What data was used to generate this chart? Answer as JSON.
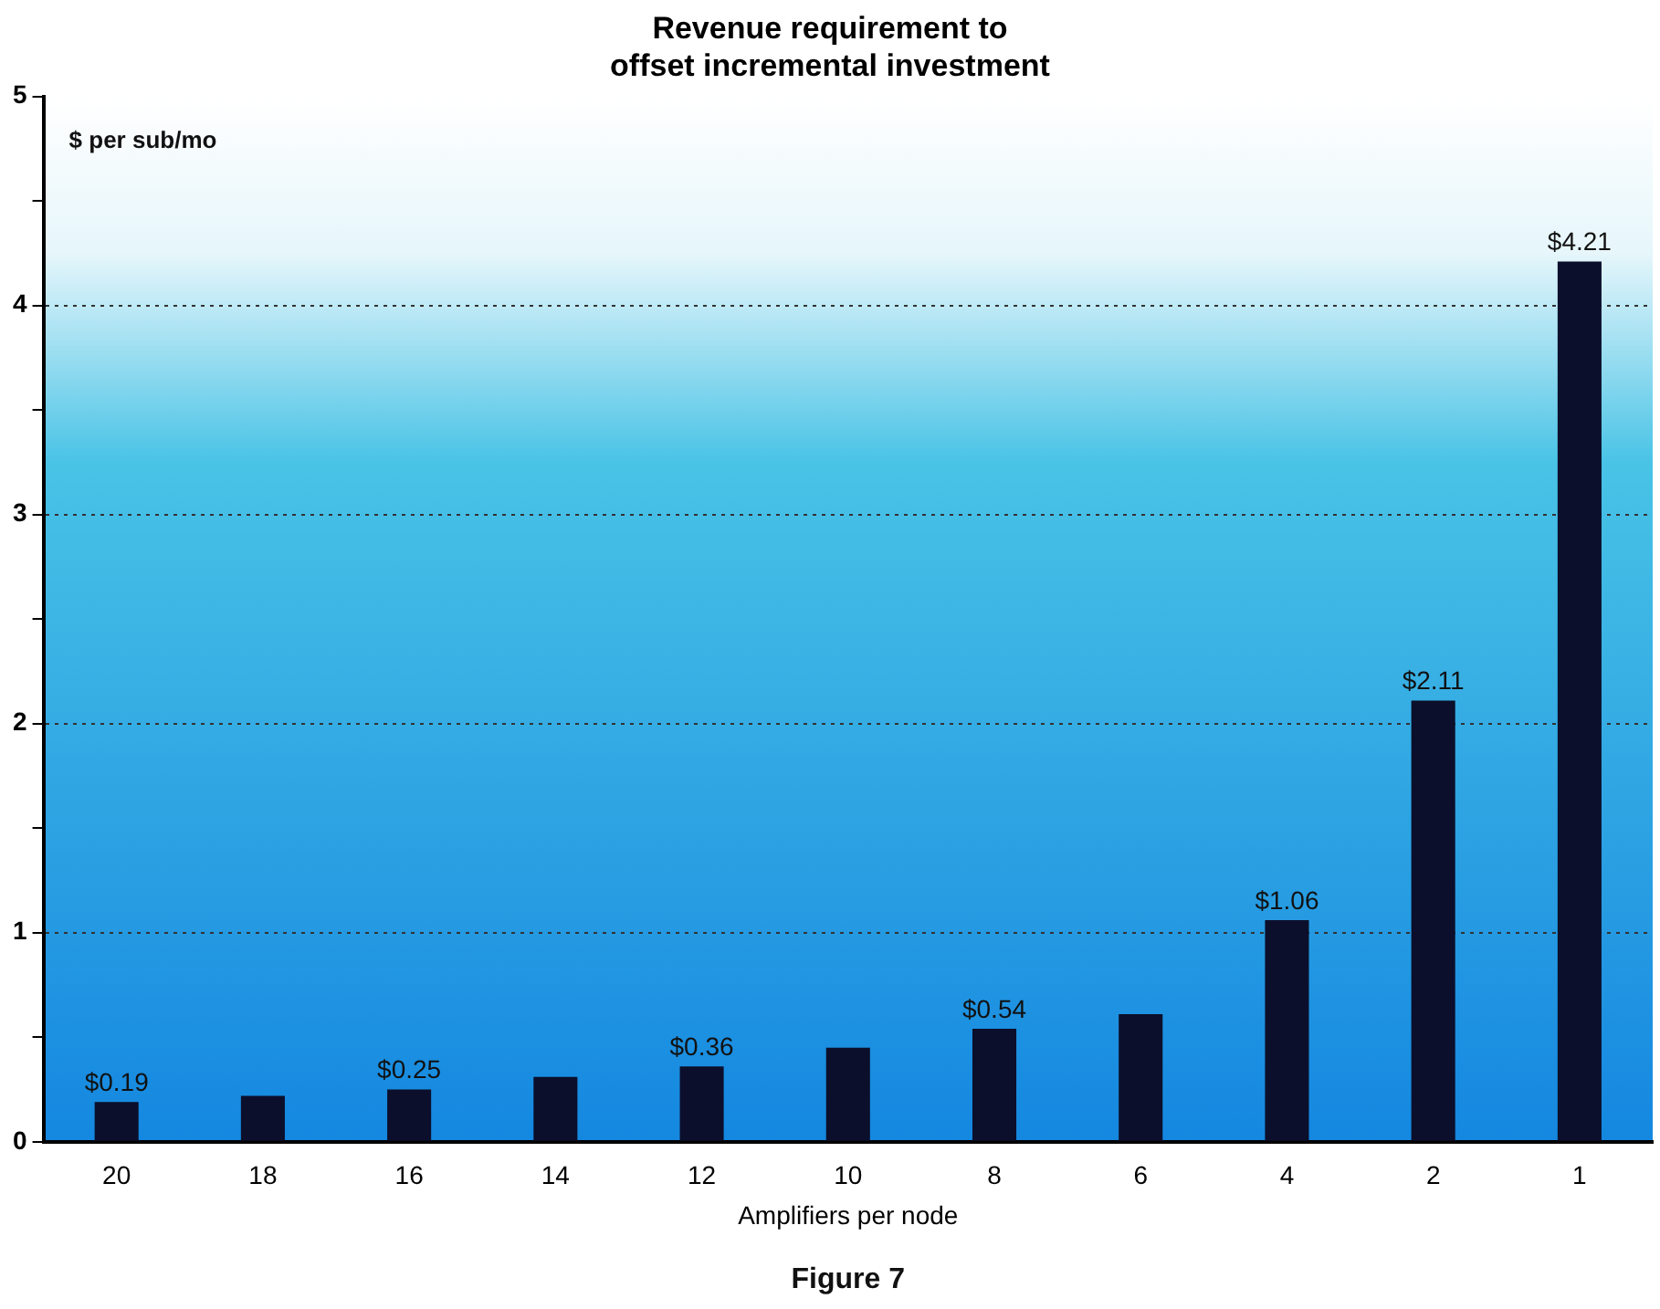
{
  "chart_data": {
    "type": "bar",
    "title": "Revenue requirement to\noffset incremental investment",
    "xlabel": "Amplifiers per node",
    "ylabel": "$ per sub/mo",
    "categories": [
      "20",
      "18",
      "16",
      "14",
      "12",
      "10",
      "8",
      "6",
      "4",
      "2",
      "1"
    ],
    "values": [
      0.19,
      0.22,
      0.25,
      0.31,
      0.36,
      0.45,
      0.54,
      0.61,
      1.06,
      2.11,
      4.21
    ],
    "value_labels": [
      "$0.19",
      null,
      "$0.25",
      null,
      "$0.36",
      null,
      "$0.54",
      null,
      "$1.06",
      "$2.11",
      "$4.21"
    ],
    "color": "#0b0f2b",
    "ylim": [
      0,
      5
    ],
    "yticks": [
      0,
      {
        "value": 0.5,
        "label": null
      },
      1,
      {
        "value": 1.5,
        "label": null
      },
      2,
      {
        "value": 2.5,
        "label": null
      },
      3,
      {
        "value": 3.5,
        "label": null
      },
      4,
      {
        "value": 4.5,
        "label": null
      },
      5
    ],
    "grid": "y",
    "line_style": "dotted",
    "legend": false,
    "annotations": [
      "Figure 7"
    ]
  }
}
